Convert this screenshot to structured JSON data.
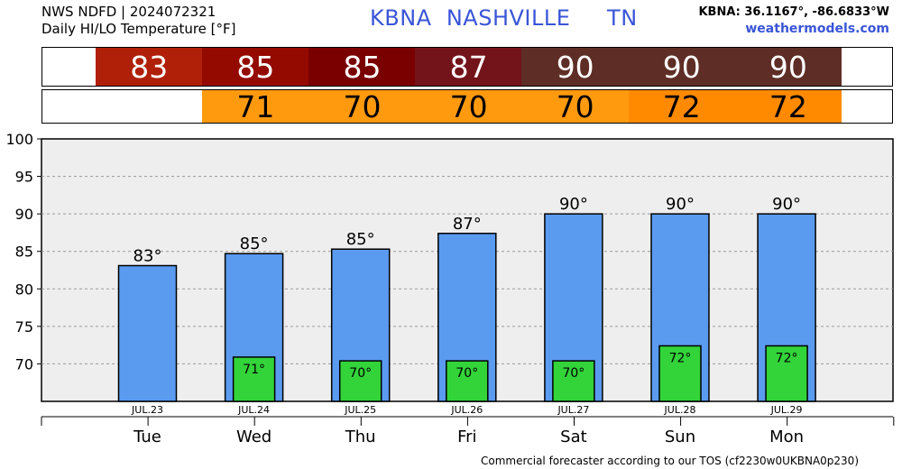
{
  "header": {
    "line1": "NWS NDFD | 2024072321",
    "line2": "Daily HI/LO Temperature [°F]",
    "title": "KBNA  NASHVILLE     TN",
    "coords": "KBNA: 36.1167°, -86.6833°W",
    "site": "weathermodels.com"
  },
  "strips": {
    "hi": [
      {
        "value": "83",
        "color": "#b02008"
      },
      {
        "value": "85",
        "color": "#940a00"
      },
      {
        "value": "85",
        "color": "#7a0000"
      },
      {
        "value": "87",
        "color": "#73141a"
      },
      {
        "value": "90",
        "color": "#5e2e26"
      },
      {
        "value": "90",
        "color": "#5e2e26"
      },
      {
        "value": "90",
        "color": "#5e2e26"
      }
    ],
    "lo": [
      {
        "value": "71",
        "color": "#ff9a0f"
      },
      {
        "value": "70",
        "color": "#ff9a0f"
      },
      {
        "value": "70",
        "color": "#ff9a0f"
      },
      {
        "value": "70",
        "color": "#ff9a0f"
      },
      {
        "value": "72",
        "color": "#ff8a00"
      },
      {
        "value": "72",
        "color": "#ff8a00"
      }
    ]
  },
  "chart_data": {
    "type": "bar",
    "categories": [
      "Tue",
      "Wed",
      "Thu",
      "Fri",
      "Sat",
      "Sun",
      "Mon"
    ],
    "dates": [
      "JUL.23",
      "JUL.24",
      "JUL.25",
      "JUL.26",
      "JUL.27",
      "JUL.28",
      "JUL.29"
    ],
    "series": [
      {
        "values": [
          83.1,
          84.7,
          85.3,
          87.4,
          90.0,
          90.0,
          90.0
        ],
        "labels": [
          "83°",
          "85°",
          "85°",
          "87°",
          "90°",
          "90°",
          "90°"
        ],
        "color": "#5a9bf0"
      },
      {
        "values": [
          null,
          70.9,
          70.4,
          70.4,
          70.4,
          72.4,
          72.4
        ],
        "labels": [
          "",
          "71°",
          "70°",
          "70°",
          "70°",
          "72°",
          "72°"
        ],
        "color": "#33d33a"
      }
    ],
    "yticks": [
      70,
      75,
      80,
      85,
      90,
      95,
      100
    ],
    "ylim": [
      65,
      100
    ],
    "grid": true,
    "plot_background": "#eeeeee"
  },
  "footer": "Commercial forecaster according to our TOS (cf2230w0UKBNA0p230)"
}
